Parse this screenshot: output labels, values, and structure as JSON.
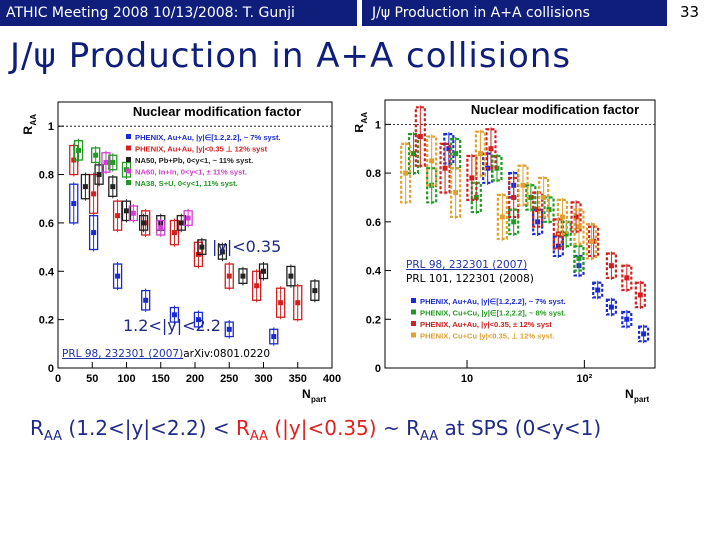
{
  "header": {
    "left_text": "ATHIC Meeting 2008 10/13/2008: T. Gunji",
    "right_text": "J/ψ Production in A+A collisions",
    "page_number": "33"
  },
  "slide_title": "J/ψ Production in A+A collisions",
  "left_plot": {
    "title": "Nuclear modification factor",
    "ylabel": "R",
    "ylabel_sub": "AA",
    "xlabel": "N",
    "xlabel_sub": "part",
    "y_ticks": [
      "0",
      "0.2",
      "0.4",
      "0.6",
      "0.8",
      "1"
    ],
    "x_ticks": [
      "0",
      "50",
      "100",
      "150",
      "200",
      "250",
      "300",
      "350",
      "400"
    ],
    "legend": [
      {
        "label": "PHENIX, Au+Au, |y|∈[1.2,2.2], ~ 7% syst.",
        "color": "#1a2ad0"
      },
      {
        "label": "PHENIX, Au+Au, |y|<0.35 ⊥ 12% syst",
        "color": "#d02020"
      },
      {
        "label": "NA50, Pb+Pb, 0<y<1, ~ 11% syst.",
        "color": "#222222"
      },
      {
        "label": "NA60, In+In, 0<y<1, ± 11% syst.",
        "color": "#d040d0"
      },
      {
        "label": "NA38, S+U, 0<y<1,    11% syst.",
        "color": "#229922"
      }
    ],
    "annotation_mid": "|y|<0.35",
    "annotation_fwd": "1.2<|y|<2.2",
    "ref_link": "PRL 98, 232301 (2007)",
    "ref_text": "arXiv:0801.0220"
  },
  "right_plot": {
    "title": "Nuclear modification factor",
    "ylabel": "R",
    "ylabel_sub": "AA",
    "xlabel": "N",
    "xlabel_sub": "part",
    "y_ticks": [
      "0",
      "0.2",
      "0.4",
      "0.6",
      "0.8",
      "1"
    ],
    "x_ticks": [
      "10",
      "10²"
    ],
    "legend": [
      {
        "label": "PHENIX, Au+Au, |y|∈[1.2,2.2], ~ 7% syst.",
        "color": "#1a2ad0"
      },
      {
        "label": "PHENIX, Cu+Cu, |y|∈[1.2,2.2], ~ 8% syst.",
        "color": "#229922"
      },
      {
        "label": "PHENIX, Au+Au, |y|<0.35, ± 12% syst",
        "color": "#d02020"
      },
      {
        "label": "PHENIX, Cu+Cu |y|<0.35, ⊥ 12% syst.",
        "color": "#e0a030"
      }
    ],
    "ref_link": "PRL 98, 232301 (2007)",
    "ref_text": "PRL 101, 122301 (2008)"
  },
  "bottom": {
    "r1": "R",
    "r1_sub": "AA",
    "part1": " (1.2<|y|<2.2) < ",
    "r2": "R",
    "r2_sub": "AA",
    "part2": " (|y|<0.35)",
    "part3": " ~ ",
    "r3": "R",
    "r3_sub": "AA",
    "part4": " at SPS (0<y<1)"
  },
  "chart_data": [
    {
      "type": "scatter",
      "title": "Nuclear modification factor",
      "xlabel": "Npart",
      "ylabel": "RAA",
      "xlim": [
        0,
        400
      ],
      "ylim": [
        0,
        1.1
      ],
      "series": [
        {
          "name": "PHENIX, Au+Au, |y|∈[1.2,2.2], ~ 7% syst.",
          "color": "#1a2ad0",
          "x": [
            23,
            52,
            87,
            128,
            170,
            205,
            250,
            315
          ],
          "y": [
            0.68,
            0.56,
            0.38,
            0.28,
            0.22,
            0.2,
            0.16,
            0.13
          ],
          "err": [
            0.08,
            0.07,
            0.05,
            0.04,
            0.03,
            0.03,
            0.03,
            0.03
          ]
        },
        {
          "name": "PHENIX, Au+Au, |y|<0.35 ⊥ 12% syst",
          "color": "#d02020",
          "x": [
            23,
            52,
            87,
            128,
            170,
            205,
            250,
            290,
            325,
            350
          ],
          "y": [
            0.86,
            0.72,
            0.63,
            0.6,
            0.56,
            0.47,
            0.38,
            0.34,
            0.27,
            0.27
          ],
          "err": [
            0.06,
            0.08,
            0.06,
            0.05,
            0.05,
            0.05,
            0.05,
            0.06,
            0.06,
            0.07
          ]
        },
        {
          "name": "NA50, Pb+Pb, 0<y<1, ~ 11% syst.",
          "color": "#222222",
          "x": [
            40,
            60,
            80,
            100,
            125,
            150,
            180,
            210,
            240,
            270,
            300,
            340,
            375
          ],
          "y": [
            0.75,
            0.8,
            0.75,
            0.65,
            0.6,
            0.6,
            0.6,
            0.5,
            0.48,
            0.38,
            0.4,
            0.38,
            0.32
          ],
          "err": [
            0.05,
            0.04,
            0.04,
            0.04,
            0.03,
            0.03,
            0.03,
            0.03,
            0.03,
            0.03,
            0.03,
            0.04,
            0.04
          ]
        },
        {
          "name": "NA60, In+In, 0<y<1, ± 11% syst.",
          "color": "#d040d0",
          "x": [
            70,
            110,
            150,
            190
          ],
          "y": [
            0.85,
            0.64,
            0.58,
            0.62
          ],
          "err": [
            0.04,
            0.03,
            0.03,
            0.03
          ]
        },
        {
          "name": "NA38, S+U, 0<y<1,    11% syst.",
          "color": "#229922",
          "x": [
            30,
            55,
            80,
            100
          ],
          "y": [
            0.9,
            0.88,
            0.85,
            0.82
          ],
          "err": [
            0.04,
            0.03,
            0.03,
            0.03
          ]
        }
      ]
    },
    {
      "type": "scatter",
      "title": "Nuclear modification factor",
      "xlabel": "Npart",
      "ylabel": "RAA",
      "xscale": "log",
      "xlim": [
        2,
        400
      ],
      "ylim": [
        0,
        1.1
      ],
      "series": [
        {
          "name": "PHENIX, Au+Au, |y|∈[1.2,2.2], ~ 7% syst.",
          "color": "#1a2ad0",
          "x": [
            7,
            15,
            25,
            40,
            60,
            90,
            130,
            170,
            230,
            320
          ],
          "y": [
            0.9,
            0.82,
            0.75,
            0.6,
            0.5,
            0.42,
            0.32,
            0.25,
            0.2,
            0.14
          ],
          "err": [
            0.06,
            0.06,
            0.05,
            0.05,
            0.04,
            0.04,
            0.03,
            0.03,
            0.03,
            0.03
          ]
        },
        {
          "name": "PHENIX, Cu+Cu, |y|∈[1.2,2.2], ~ 8% syst.",
          "color": "#229922",
          "x": [
            3.5,
            5,
            8,
            12,
            18,
            25,
            35,
            50,
            70,
            90
          ],
          "y": [
            0.88,
            0.75,
            0.88,
            0.7,
            0.82,
            0.6,
            0.7,
            0.65,
            0.55,
            0.45
          ],
          "err": [
            0.08,
            0.07,
            0.06,
            0.06,
            0.05,
            0.05,
            0.05,
            0.05,
            0.05,
            0.05
          ]
        },
        {
          "name": "PHENIX, Au+Au, |y|<0.35, ± 12% syst",
          "color": "#d02020",
          "x": [
            4,
            6.5,
            11,
            16,
            25,
            40,
            60,
            85,
            120,
            170,
            230,
            300
          ],
          "y": [
            0.95,
            0.82,
            0.78,
            0.9,
            0.7,
            0.65,
            0.55,
            0.62,
            0.52,
            0.42,
            0.37,
            0.3
          ],
          "err": [
            0.12,
            0.1,
            0.09,
            0.08,
            0.08,
            0.07,
            0.06,
            0.06,
            0.06,
            0.05,
            0.05,
            0.05
          ]
        },
        {
          "name": "PHENIX, Cu+Cu |y|<0.35, ⊥ 12% syst.",
          "color": "#e0a030",
          "x": [
            3,
            5,
            8,
            13,
            20,
            30,
            45,
            65,
            90,
            115
          ],
          "y": [
            0.8,
            0.85,
            0.72,
            0.88,
            0.62,
            0.75,
            0.7,
            0.62,
            0.58,
            0.52
          ],
          "err": [
            0.12,
            0.1,
            0.1,
            0.09,
            0.09,
            0.08,
            0.08,
            0.07,
            0.07,
            0.07
          ]
        }
      ]
    }
  ]
}
